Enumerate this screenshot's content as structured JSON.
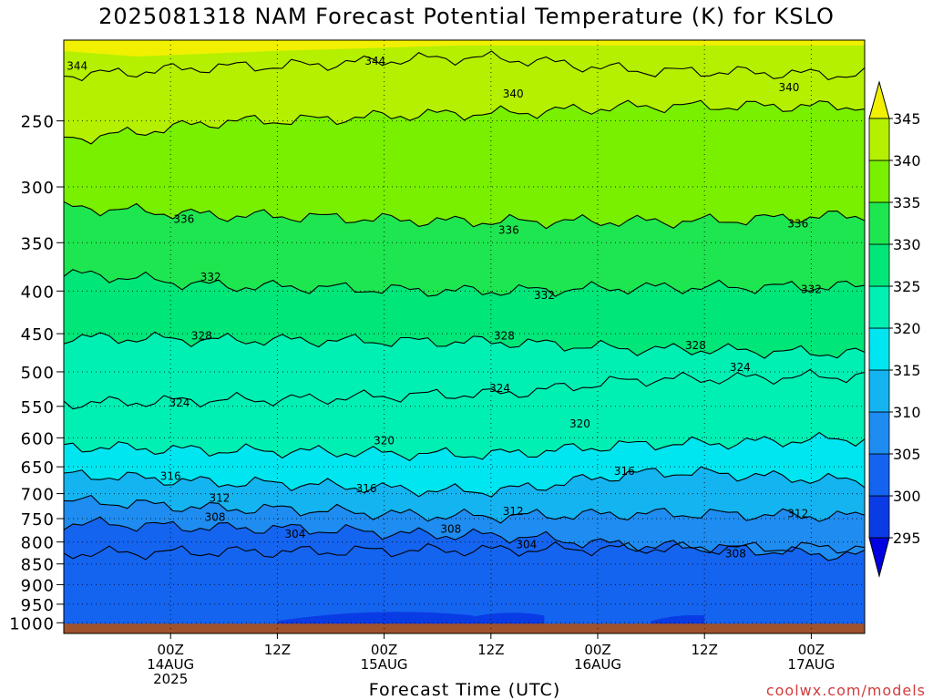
{
  "title": "2025081318 NAM Forecast Potential Temperature (K) for KSLO",
  "xlabel": "Forecast Time (UTC)",
  "credit": "coolwx.com/models",
  "chart_data": {
    "type": "contour",
    "title": "2025081318 NAM Forecast Potential Temperature (K) for KSLO",
    "xlabel": "Forecast Time (UTC)",
    "ylabel": "",
    "y_axis": {
      "unit": "hPa",
      "log_scale": true,
      "inverted": true,
      "ticks": [
        250,
        300,
        350,
        400,
        450,
        500,
        550,
        600,
        650,
        700,
        750,
        800,
        850,
        900,
        950,
        1000
      ],
      "range": [
        1030,
        200
      ]
    },
    "x_axis": {
      "range_hours": [
        -6,
        84
      ],
      "ticks": [
        {
          "label": "00Z",
          "sub1": "14AUG",
          "sub2": "2025",
          "hour": 6
        },
        {
          "label": "12Z",
          "sub1": "",
          "sub2": "",
          "hour": 18
        },
        {
          "label": "00Z",
          "sub1": "15AUG",
          "sub2": "",
          "hour": 30
        },
        {
          "label": "12Z",
          "sub1": "",
          "sub2": "",
          "hour": 42
        },
        {
          "label": "00Z",
          "sub1": "16AUG",
          "sub2": "",
          "hour": 54
        },
        {
          "label": "12Z",
          "sub1": "",
          "sub2": "",
          "hour": 66
        },
        {
          "label": "00Z",
          "sub1": "17AUG",
          "sub2": "",
          "hour": 78
        }
      ]
    },
    "grid": true,
    "colorbar": {
      "levels": [
        295,
        300,
        305,
        310,
        315,
        320,
        325,
        330,
        335,
        340,
        345
      ],
      "colors": [
        "#0000e0",
        "#0a3ce6",
        "#1464f0",
        "#1e8cf0",
        "#14b4f0",
        "#00e6f0",
        "#00f0b4",
        "#00e678",
        "#1ee650",
        "#78f000",
        "#b4f000",
        "#f0f000"
      ]
    },
    "contour_lines": [
      {
        "value": 304,
        "pressure": [
          825,
          822,
          818,
          814,
          812
        ]
      },
      {
        "value": 308,
        "pressure": [
          760,
          770,
          785,
          810,
          830
        ]
      },
      {
        "value": 312,
        "pressure": [
          715,
          730,
          745,
          740,
          745
        ]
      },
      {
        "value": 316,
        "pressure": [
          665,
          680,
          695,
          660,
          675
        ]
      },
      {
        "value": 320,
        "pressure": [
          615,
          622,
          628,
          610,
          602
        ]
      },
      {
        "value": 324,
        "pressure": [
          545,
          540,
          532,
          510,
          506
        ]
      },
      {
        "value": 328,
        "pressure": [
          455,
          458,
          460,
          470,
          475
        ]
      },
      {
        "value": 332,
        "pressure": [
          382,
          395,
          400,
          396,
          395
        ]
      },
      {
        "value": 336,
        "pressure": [
          318,
          325,
          330,
          330,
          325
        ]
      },
      {
        "value": 340,
        "pressure": [
          262,
          250,
          245,
          240,
          240
        ]
      },
      {
        "value": 344,
        "pressure": [
          220,
          215,
          210,
          218,
          220
        ]
      }
    ],
    "contour_labels": [
      {
        "text": "344",
        "hour": -4.5,
        "p": 215
      },
      {
        "text": "344",
        "hour": 29,
        "p": 212
      },
      {
        "text": "340",
        "hour": 44.5,
        "p": 232
      },
      {
        "text": "340",
        "hour": 75.5,
        "p": 228
      },
      {
        "text": "336",
        "hour": 7.5,
        "p": 328
      },
      {
        "text": "336",
        "hour": 44,
        "p": 338
      },
      {
        "text": "336",
        "hour": 76.5,
        "p": 332
      },
      {
        "text": "332",
        "hour": 10.5,
        "p": 385
      },
      {
        "text": "332",
        "hour": 48,
        "p": 405
      },
      {
        "text": "332",
        "hour": 78,
        "p": 398
      },
      {
        "text": "328",
        "hour": 9.5,
        "p": 453
      },
      {
        "text": "328",
        "hour": 43.5,
        "p": 453
      },
      {
        "text": "328",
        "hour": 65,
        "p": 465
      },
      {
        "text": "324",
        "hour": 7,
        "p": 545
      },
      {
        "text": "324",
        "hour": 43,
        "p": 523
      },
      {
        "text": "324",
        "hour": 70,
        "p": 494
      },
      {
        "text": "320",
        "hour": 30,
        "p": 605
      },
      {
        "text": "320",
        "hour": 52,
        "p": 577
      },
      {
        "text": "316",
        "hour": 6,
        "p": 667
      },
      {
        "text": "316",
        "hour": 28,
        "p": 690
      },
      {
        "text": "316",
        "hour": 57,
        "p": 658
      },
      {
        "text": "312",
        "hour": 11.5,
        "p": 709
      },
      {
        "text": "312",
        "hour": 44.5,
        "p": 735
      },
      {
        "text": "312",
        "hour": 76.5,
        "p": 740
      },
      {
        "text": "308",
        "hour": 11,
        "p": 747
      },
      {
        "text": "308",
        "hour": 37.5,
        "p": 772
      },
      {
        "text": "308",
        "hour": 69.5,
        "p": 826
      },
      {
        "text": "304",
        "hour": 20,
        "p": 783
      },
      {
        "text": "304",
        "hour": 46,
        "p": 806
      }
    ],
    "surface_color": "#a0522d"
  }
}
